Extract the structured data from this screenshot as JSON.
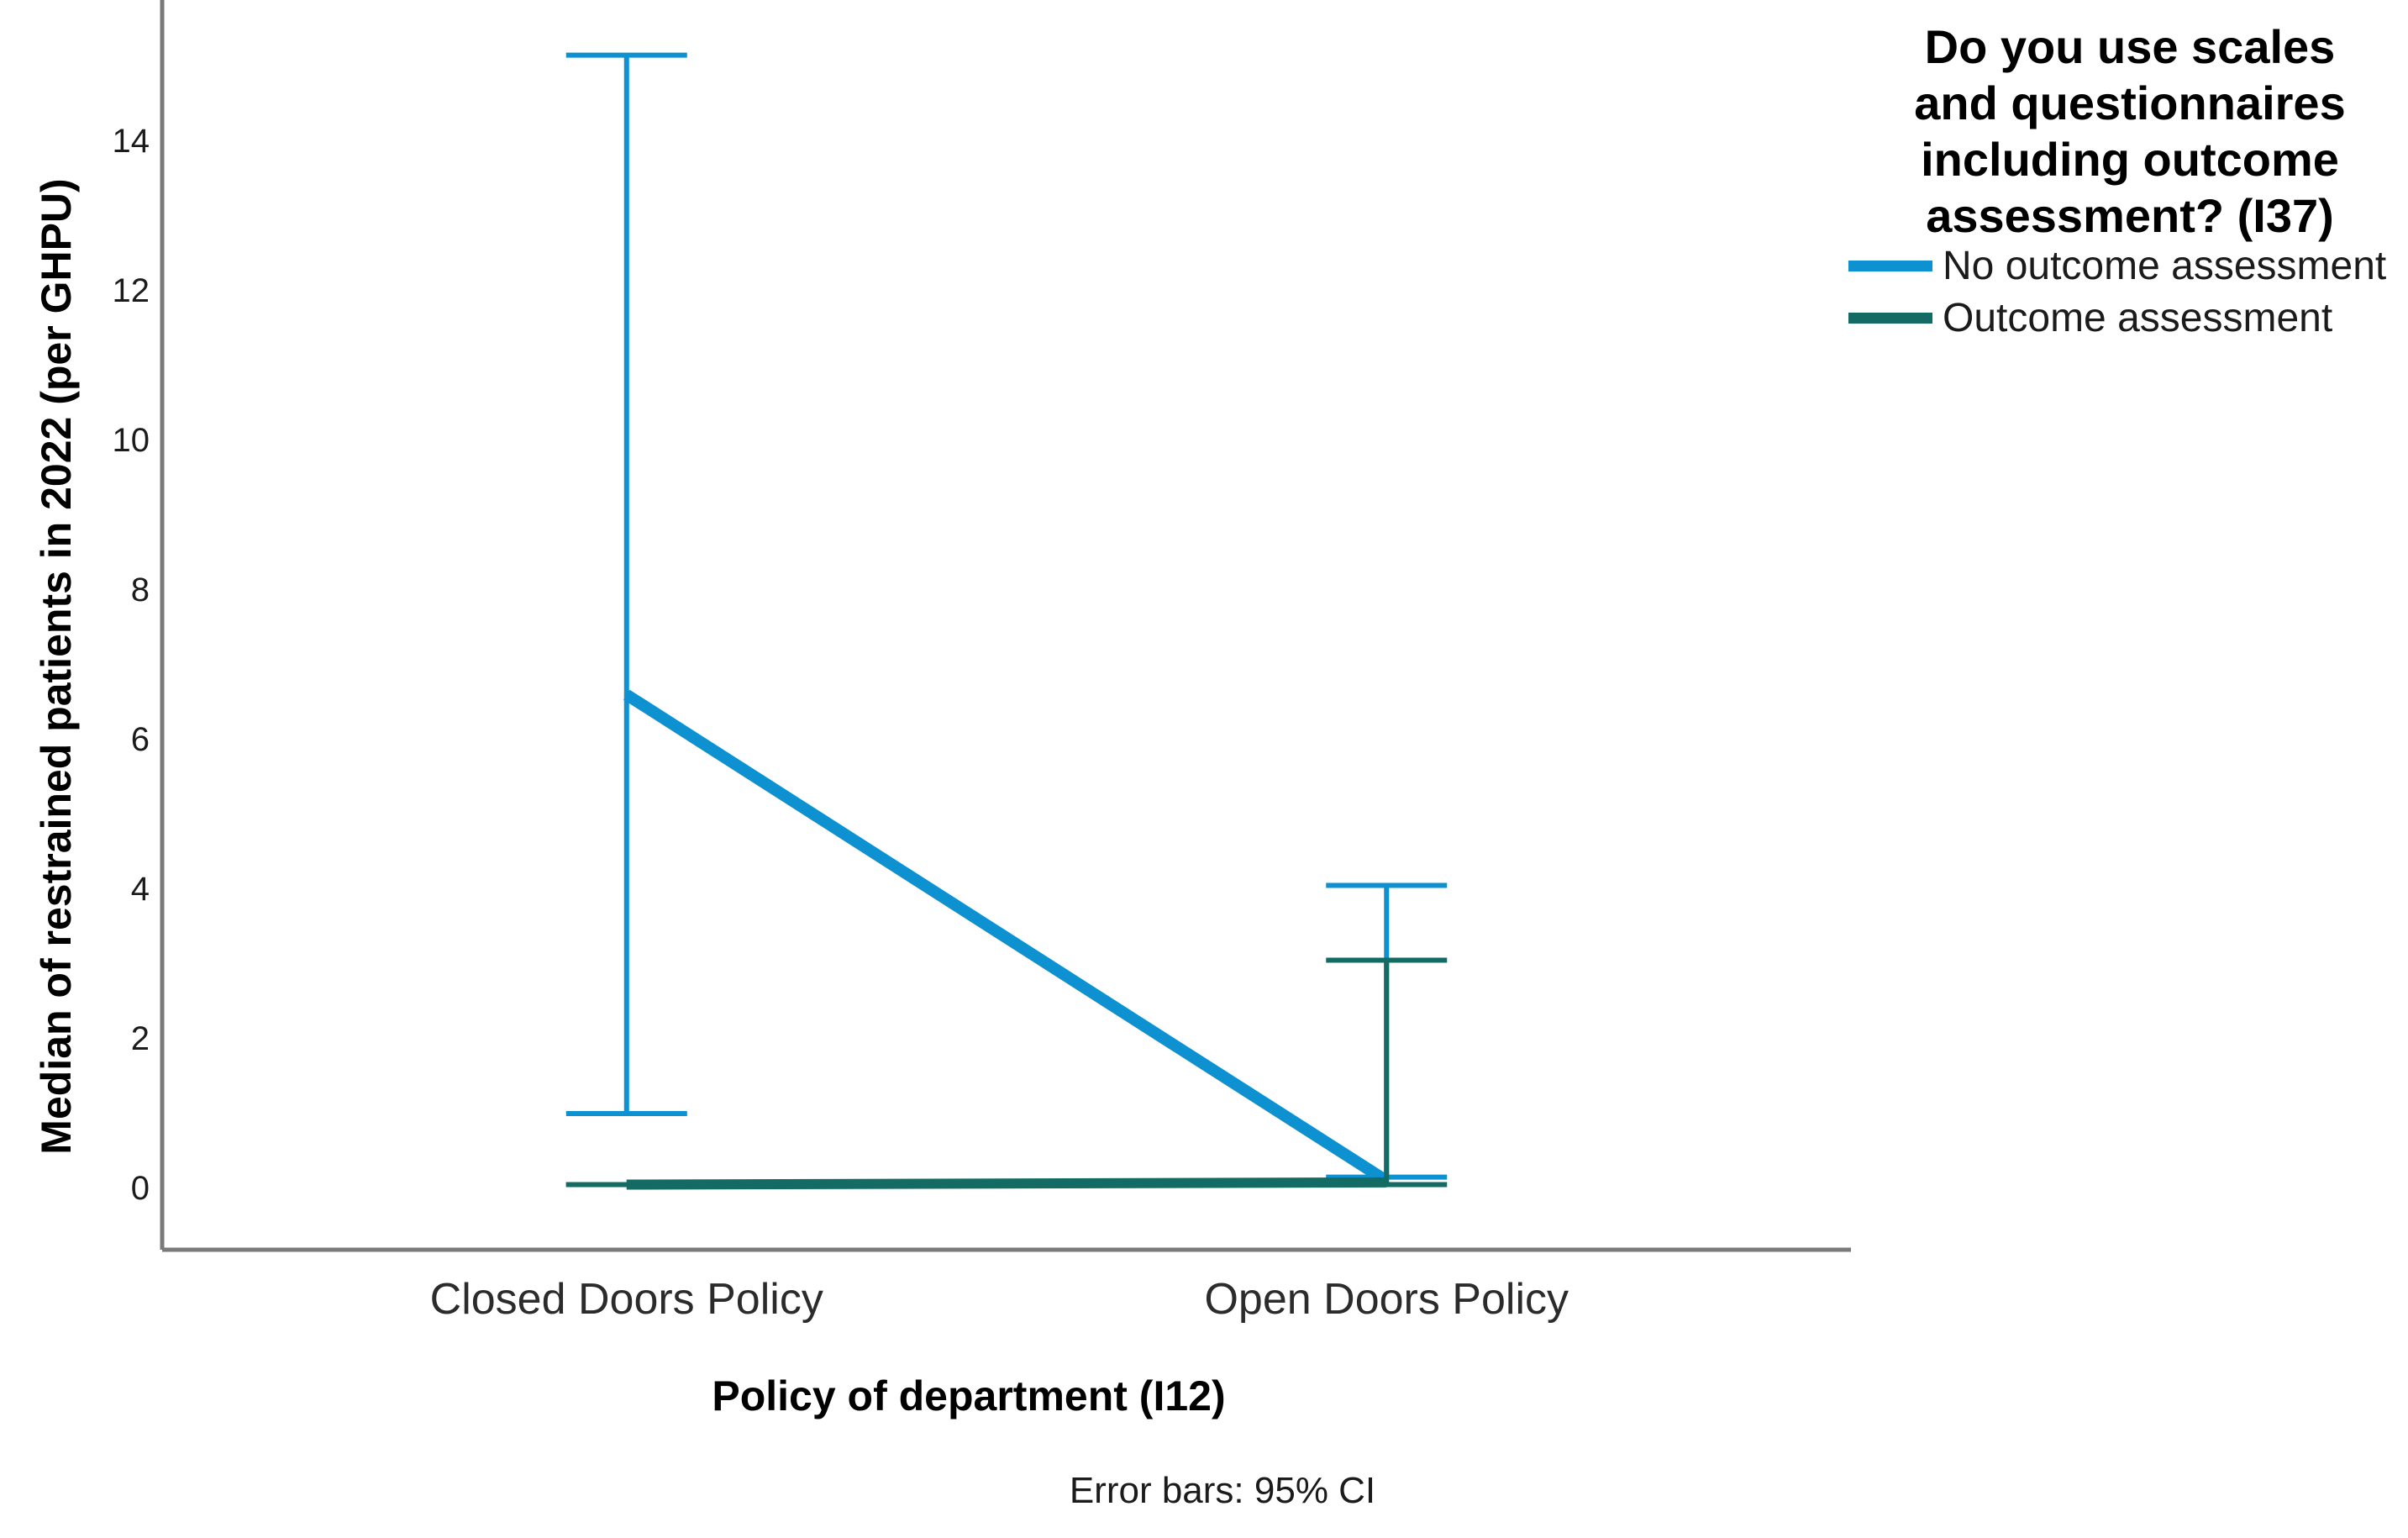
{
  "chart_data": {
    "type": "line",
    "subtype": "point-estimates-with-error-bars",
    "y_title": "Median of restrained patients in 2022 (per GHPU)",
    "x_title": "Policy of department (I12)",
    "footnote": "Error bars: 95% CI",
    "categories": [
      "Closed Doors Policy",
      "Open Doors Policy"
    ],
    "y_ticks": [
      0,
      2,
      4,
      6,
      8,
      10,
      12,
      14
    ],
    "ylim": [
      0,
      15.5
    ],
    "grid": "off",
    "axis_color": "#7A7A7A",
    "series": [
      {
        "name": "No outcome assessment",
        "color": "#0D91D0",
        "values": [
          6.6,
          0.1
        ],
        "ci_low": [
          1.0,
          0.15
        ],
        "ci_high": [
          15.15,
          4.05
        ]
      },
      {
        "name": "Outcome assessment",
        "color": "#136B64",
        "values": [
          0.05,
          0.08
        ],
        "ci_low": [
          0.05,
          0.05
        ],
        "ci_high": [
          0.05,
          3.05
        ]
      }
    ],
    "legend": {
      "title": "Do you use scales and questionnaires including outcome assessment? (I37)",
      "position": "top-right"
    }
  }
}
